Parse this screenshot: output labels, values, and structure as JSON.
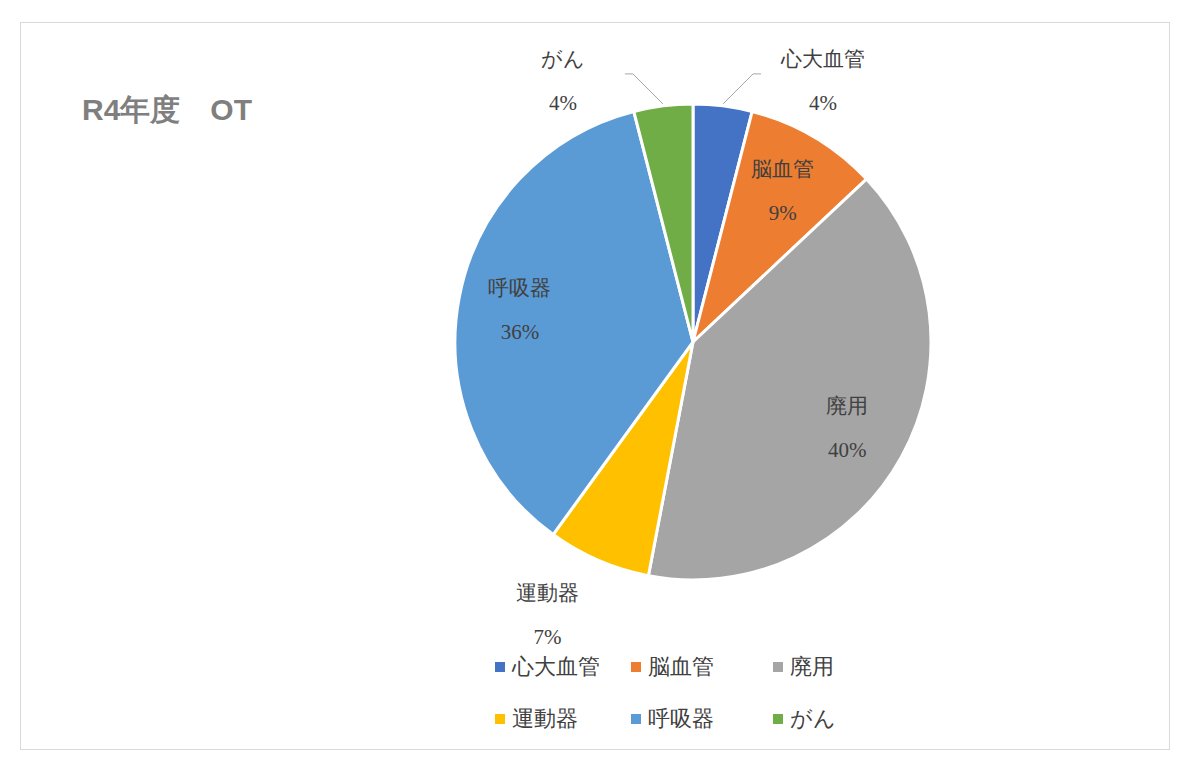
{
  "chart_data": {
    "type": "pie",
    "title": "R4年度　OT",
    "categories": [
      "心大血管",
      "脳血管",
      "廃用",
      "運動器",
      "呼吸器",
      "がん"
    ],
    "values": [
      4,
      9,
      40,
      7,
      36,
      4
    ],
    "value_labels": [
      "4%",
      "9%",
      "40%",
      "7%",
      "36%",
      "4%"
    ],
    "colors": [
      "#4472c4",
      "#ed7d31",
      "#a5a5a5",
      "#ffc000",
      "#5b9bd5",
      "#70ad47"
    ],
    "data_labels": true,
    "legend": "bottom"
  }
}
